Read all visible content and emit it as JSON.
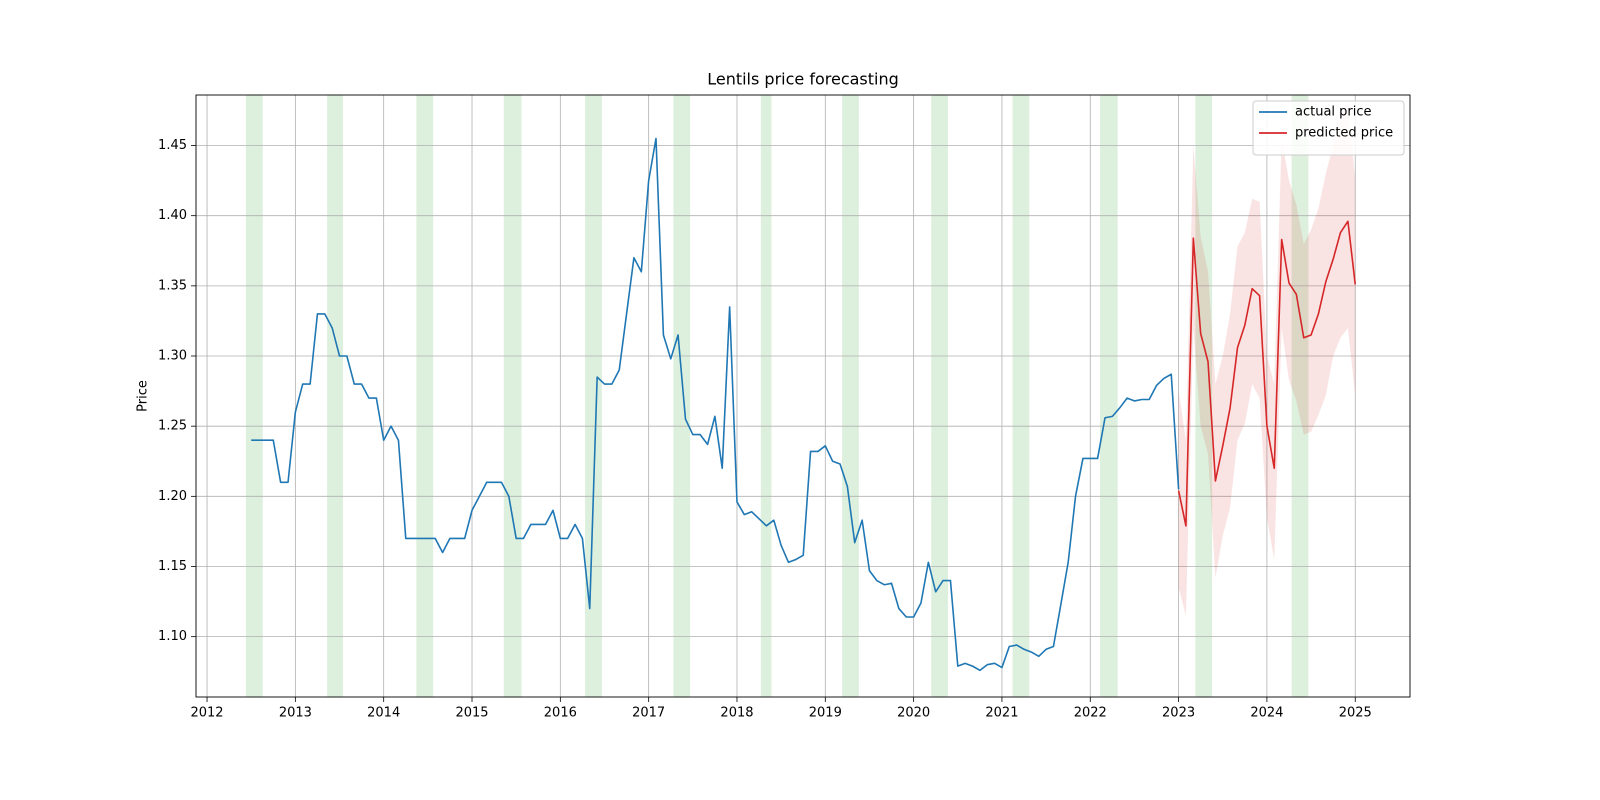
{
  "chart_data": {
    "type": "line",
    "title": "Lentils price forecasting",
    "ylabel": "Price",
    "xlim": [
      2011.875,
      2025.62
    ],
    "xticks": [
      2012,
      2013,
      2014,
      2015,
      2016,
      2017,
      2018,
      2019,
      2020,
      2021,
      2022,
      2023,
      2024,
      2025
    ],
    "ylim": [
      1.057,
      1.486
    ],
    "yticks": [
      {
        "value": 1.1,
        "label": "1.10"
      },
      1.15,
      {
        "value": 1.2,
        "label": "1.20"
      },
      1.25,
      {
        "value": 1.3,
        "label": "1.30"
      },
      1.35,
      {
        "value": 1.4,
        "label": "1.40"
      },
      1.45
    ],
    "grid": true,
    "legend": "upper right",
    "span_color": "#2ca02c",
    "shaded_spans": [
      [
        2012.44,
        2012.63
      ],
      [
        2013.36,
        2013.54
      ],
      [
        2014.37,
        2014.56
      ],
      [
        2015.36,
        2015.56
      ],
      [
        2016.28,
        2016.47
      ],
      [
        2017.28,
        2017.47
      ],
      [
        2018.27,
        2018.39
      ],
      [
        2019.19,
        2019.38
      ],
      [
        2020.2,
        2020.39
      ],
      [
        2021.12,
        2021.31
      ],
      [
        2022.11,
        2022.31
      ],
      [
        2023.19,
        2023.38
      ],
      [
        2024.28,
        2024.47
      ]
    ],
    "series": [
      {
        "name": "actual price",
        "color": "#1f77b4",
        "x": [
          2012.5,
          2012.583,
          2012.667,
          2012.75,
          2012.833,
          2012.917,
          2013,
          2013.083,
          2013.167,
          2013.25,
          2013.333,
          2013.417,
          2013.5,
          2013.583,
          2013.667,
          2013.75,
          2013.833,
          2013.917,
          2014,
          2014.083,
          2014.167,
          2014.25,
          2014.333,
          2014.417,
          2014.5,
          2014.583,
          2014.667,
          2014.75,
          2014.833,
          2014.917,
          2015,
          2015.083,
          2015.167,
          2015.25,
          2015.333,
          2015.417,
          2015.5,
          2015.583,
          2015.667,
          2015.75,
          2015.833,
          2015.917,
          2016,
          2016.083,
          2016.167,
          2016.25,
          2016.333,
          2016.417,
          2016.5,
          2016.583,
          2016.667,
          2016.75,
          2016.833,
          2016.917,
          2017,
          2017.083,
          2017.167,
          2017.25,
          2017.333,
          2017.417,
          2017.5,
          2017.583,
          2017.667,
          2017.75,
          2017.833,
          2017.917,
          2018,
          2018.083,
          2018.167,
          2018.25,
          2018.333,
          2018.417,
          2018.5,
          2018.583,
          2018.667,
          2018.75,
          2018.833,
          2018.917,
          2019,
          2019.083,
          2019.167,
          2019.25,
          2019.333,
          2019.417,
          2019.5,
          2019.583,
          2019.667,
          2019.75,
          2019.833,
          2019.917,
          2020,
          2020.083,
          2020.167,
          2020.25,
          2020.333,
          2020.417,
          2020.5,
          2020.583,
          2020.667,
          2020.75,
          2020.833,
          2020.917,
          2021,
          2021.083,
          2021.167,
          2021.25,
          2021.333,
          2021.417,
          2021.5,
          2021.583,
          2021.667,
          2021.75,
          2021.833,
          2021.917,
          2022,
          2022.083,
          2022.167,
          2022.25,
          2022.333,
          2022.417,
          2022.5,
          2022.583,
          2022.667,
          2022.75,
          2022.833,
          2022.917,
          2023
        ],
        "values": [
          1.24,
          1.24,
          1.24,
          1.24,
          1.21,
          1.21,
          1.26,
          1.28,
          1.28,
          1.33,
          1.33,
          1.32,
          1.3,
          1.3,
          1.28,
          1.28,
          1.27,
          1.27,
          1.24,
          1.25,
          1.24,
          1.17,
          1.17,
          1.17,
          1.17,
          1.17,
          1.16,
          1.17,
          1.17,
          1.17,
          1.19,
          1.2,
          1.21,
          1.21,
          1.21,
          1.2,
          1.17,
          1.17,
          1.18,
          1.18,
          1.18,
          1.19,
          1.17,
          1.17,
          1.18,
          1.17,
          1.12,
          1.285,
          1.28,
          1.28,
          1.29,
          1.33,
          1.37,
          1.36,
          1.425,
          1.455,
          1.315,
          1.298,
          1.315,
          1.255,
          1.244,
          1.244,
          1.237,
          1.257,
          1.22,
          1.335,
          1.196,
          1.187,
          1.189,
          1.184,
          1.179,
          1.183,
          1.165,
          1.153,
          1.155,
          1.158,
          1.232,
          1.232,
          1.236,
          1.225,
          1.223,
          1.207,
          1.167,
          1.183,
          1.147,
          1.14,
          1.137,
          1.138,
          1.12,
          1.114,
          1.114,
          1.124,
          1.153,
          1.132,
          1.14,
          1.14,
          1.079,
          1.081,
          1.079,
          1.076,
          1.08,
          1.081,
          1.078,
          1.093,
          1.094,
          1.091,
          1.089,
          1.086,
          1.091,
          1.093,
          1.123,
          1.153,
          1.2,
          1.227,
          1.227,
          1.227,
          1.256,
          1.257,
          1.263,
          1.27,
          1.268,
          1.269,
          1.269,
          1.279,
          1.284,
          1.287,
          1.205
        ]
      },
      {
        "name": "predicted price",
        "color": "#d62728",
        "x": [
          2023,
          2023.083,
          2023.167,
          2023.25,
          2023.333,
          2023.417,
          2023.5,
          2023.583,
          2023.667,
          2023.75,
          2023.833,
          2023.917,
          2024,
          2024.083,
          2024.167,
          2024.25,
          2024.333,
          2024.417,
          2024.5,
          2024.583,
          2024.667,
          2024.75,
          2024.833,
          2024.917,
          2025
        ],
        "values": [
          1.204,
          1.179,
          1.384,
          1.316,
          1.296,
          1.211,
          1.236,
          1.263,
          1.306,
          1.322,
          1.348,
          1.343,
          1.25,
          1.22,
          1.383,
          1.352,
          1.344,
          1.313,
          1.315,
          1.33,
          1.353,
          1.369,
          1.388,
          1.396,
          1.351
        ],
        "lower": [
          1.135,
          1.115,
          1.32,
          1.25,
          1.23,
          1.142,
          1.172,
          1.192,
          1.24,
          1.252,
          1.28,
          1.27,
          1.185,
          1.155,
          1.32,
          1.283,
          1.268,
          1.244,
          1.246,
          1.258,
          1.272,
          1.3,
          1.313,
          1.32,
          1.272
        ],
        "upper": [
          1.275,
          1.24,
          1.45,
          1.385,
          1.36,
          1.28,
          1.3,
          1.33,
          1.378,
          1.388,
          1.412,
          1.41,
          1.3,
          1.28,
          1.455,
          1.425,
          1.408,
          1.38,
          1.39,
          1.405,
          1.43,
          1.45,
          1.47,
          1.48,
          1.425
        ]
      }
    ]
  }
}
